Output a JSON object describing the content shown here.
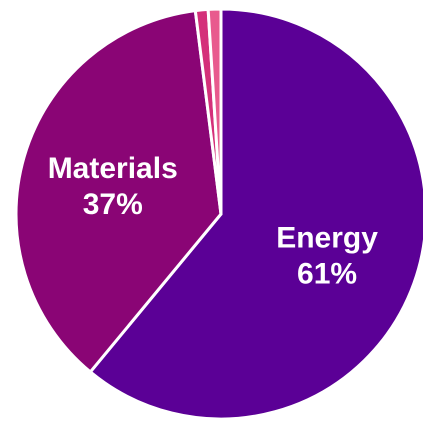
{
  "chart_data": {
    "type": "pie",
    "slices": [
      {
        "label": "Energy",
        "value": 61,
        "value_label": "61%",
        "color": "#5b0096"
      },
      {
        "label": "Materials",
        "value": 37,
        "value_label": "37%",
        "color": "#8a0575"
      },
      {
        "label": "",
        "value": 1,
        "value_label": "",
        "color": "#d4307a"
      },
      {
        "label": "",
        "value": 1,
        "value_label": "",
        "color": "#e85a8e"
      }
    ],
    "start": "top",
    "direction": "clockwise",
    "separator_color": "#ffffff"
  }
}
